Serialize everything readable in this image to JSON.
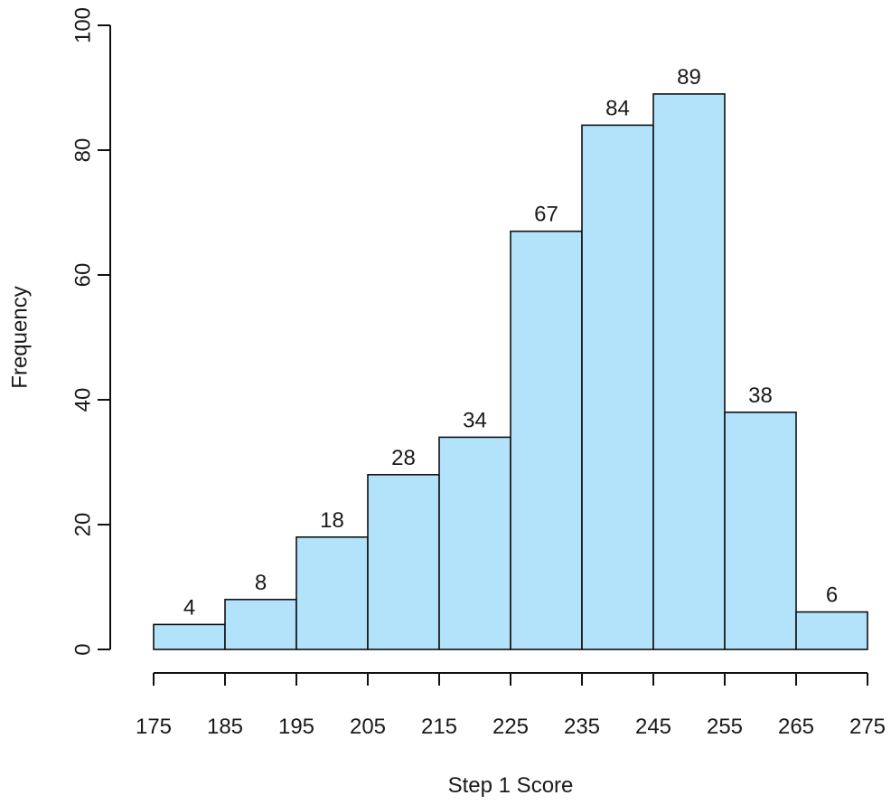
{
  "chart_data": {
    "type": "bar",
    "subtype": "histogram",
    "title": "",
    "xlabel": "Step 1 Score",
    "ylabel": "Frequency",
    "bins": [
      {
        "start": 175,
        "end": 185,
        "value": 4
      },
      {
        "start": 185,
        "end": 195,
        "value": 8
      },
      {
        "start": 195,
        "end": 205,
        "value": 18
      },
      {
        "start": 205,
        "end": 215,
        "value": 28
      },
      {
        "start": 215,
        "end": 225,
        "value": 34
      },
      {
        "start": 225,
        "end": 235,
        "value": 67
      },
      {
        "start": 235,
        "end": 245,
        "value": 84
      },
      {
        "start": 245,
        "end": 255,
        "value": 89
      },
      {
        "start": 255,
        "end": 265,
        "value": 38
      },
      {
        "start": 265,
        "end": 275,
        "value": 6
      }
    ],
    "xticks": [
      175,
      185,
      195,
      205,
      215,
      225,
      235,
      245,
      255,
      265,
      275
    ],
    "yticks": [
      0,
      20,
      40,
      60,
      80,
      100
    ],
    "xlim": [
      175,
      275
    ],
    "ylim": [
      0,
      100
    ],
    "bar_color": "#b3e2fb",
    "edge_color": "#111111",
    "grid": false,
    "data_labels": true
  }
}
